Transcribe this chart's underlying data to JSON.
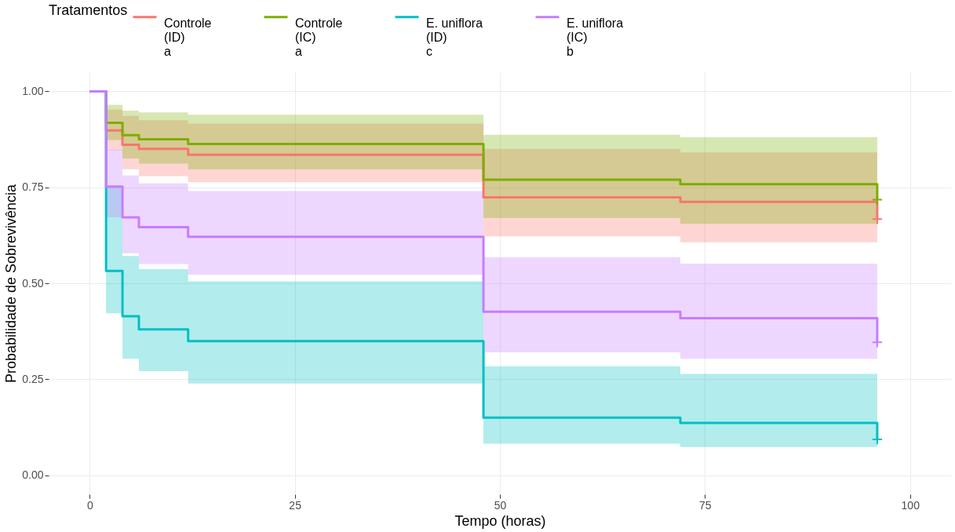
{
  "chart_data": {
    "type": "step",
    "xlabel": "Tempo (horas)",
    "ylabel": "Probabilidade de Sobrevivência",
    "legend_title": "Tratamentos",
    "legend": "top",
    "grid": true,
    "xlim": [
      -5,
      105
    ],
    "xticks": [
      0,
      25,
      50,
      75,
      100
    ],
    "ylim": [
      -0.05,
      1.05
    ],
    "yticks": [
      {
        "value": 0,
        "label": "0.00"
      },
      {
        "value": 0.25,
        "label": "0.25"
      },
      {
        "value": 0.5,
        "label": "0.50"
      },
      {
        "value": 0.75,
        "label": "0.75"
      },
      {
        "value": 1,
        "label": "1.00"
      }
    ],
    "series": [
      {
        "name": "Controle\n(ID)\na",
        "color": "#f8766d",
        "x": [
          0,
          2,
          4,
          6,
          12,
          48,
          72,
          96,
          96
        ],
        "values": [
          1,
          0.898,
          0.861,
          0.85,
          0.835,
          0.724,
          0.712,
          0.712,
          0.667
        ],
        "lower": [
          1,
          0.846,
          0.797,
          0.779,
          0.763,
          0.622,
          0.607,
          0.607,
          0.607
        ],
        "upper": [
          1,
          0.953,
          0.936,
          0.925,
          0.916,
          0.85,
          0.841,
          0.841,
          0.841
        ]
      },
      {
        "name": "Controle\n(IC)\na",
        "color": "#7cae00",
        "x": [
          0,
          2,
          4,
          6,
          12,
          48,
          72,
          96,
          96
        ],
        "values": [
          1,
          0.918,
          0.886,
          0.875,
          0.863,
          0.77,
          0.758,
          0.758,
          0.718
        ],
        "lower": [
          1,
          0.873,
          0.825,
          0.812,
          0.797,
          0.67,
          0.655,
          0.655,
          0.655
        ],
        "upper": [
          1,
          0.965,
          0.95,
          0.945,
          0.939,
          0.887,
          0.881,
          0.881,
          0.881
        ]
      },
      {
        "name": "E. uniflora\n(ID)\nc",
        "color": "#00bfc4",
        "x": [
          0,
          2,
          4,
          6,
          12,
          48,
          72,
          96,
          96
        ],
        "values": [
          1,
          0.532,
          0.414,
          0.38,
          0.349,
          0.15,
          0.136,
          0.136,
          0.093
        ],
        "lower": [
          1,
          0.422,
          0.303,
          0.271,
          0.239,
          0.082,
          0.073,
          0.073,
          0.073
        ],
        "upper": [
          1,
          0.75,
          0.571,
          0.537,
          0.505,
          0.284,
          0.264,
          0.264,
          0.264
        ]
      },
      {
        "name": "E. uniflora\n(IC)\nb",
        "color": "#c77cff",
        "x": [
          0,
          2,
          4,
          6,
          12,
          48,
          72,
          96,
          96
        ],
        "values": [
          1,
          0.752,
          0.672,
          0.646,
          0.621,
          0.426,
          0.409,
          0.409,
          0.346
        ],
        "lower": [
          1,
          0.672,
          0.578,
          0.55,
          0.522,
          0.32,
          0.303,
          0.303,
          0.303
        ],
        "upper": [
          1,
          0.848,
          0.781,
          0.76,
          0.74,
          0.568,
          0.551,
          0.551,
          0.551
        ]
      },
      {
        "type": "scatter",
        "marker": "cross",
        "color": "#f8766d",
        "x": [
          96
        ],
        "values": [
          0.667
        ]
      },
      {
        "type": "scatter",
        "marker": "cross",
        "color": "#7cae00",
        "x": [
          96
        ],
        "values": [
          0.718
        ]
      },
      {
        "type": "scatter",
        "marker": "cross",
        "color": "#00bfc4",
        "x": [
          96
        ],
        "values": [
          0.093
        ]
      },
      {
        "type": "scatter",
        "marker": "cross",
        "color": "#c77cff",
        "x": [
          96
        ],
        "values": [
          0.346
        ]
      }
    ]
  }
}
